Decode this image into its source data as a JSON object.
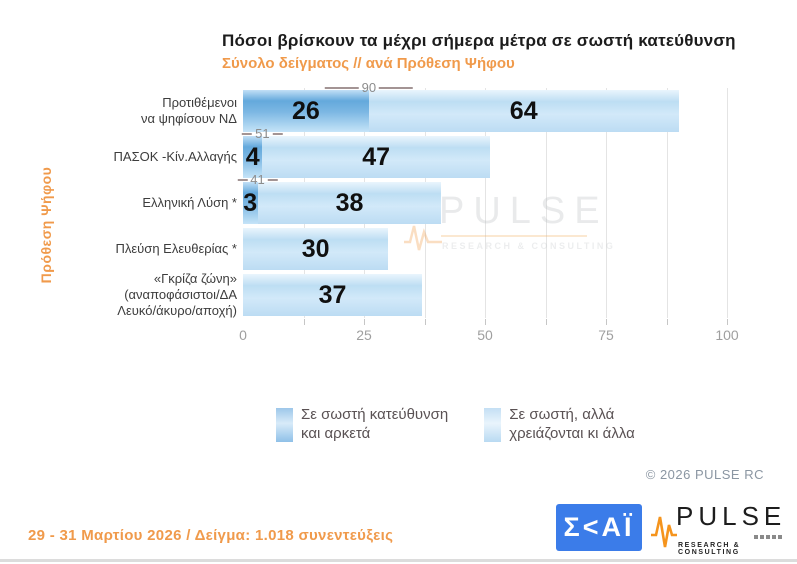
{
  "header": {
    "title": "Πόσοι βρίσκουν τα μέχρι σήμερα μέτρα σε σωστή κατεύθυνση",
    "subtitle": "Σύνολο δείγματος // ανά Πρόθεση Ψήφου"
  },
  "chart_data": {
    "type": "bar",
    "orientation": "horizontal",
    "stacked": true,
    "y_axis_title": "Πρόθεση Ψήφου",
    "categories": [
      [
        "Προτιθέμενοι",
        "να ψηφίσουν ΝΔ"
      ],
      [
        "ΠΑΣΟΚ -Κίν.Αλλαγής"
      ],
      [
        "Ελληνική Λύση *"
      ],
      [
        "Πλεύση Ελευθερίας *"
      ],
      [
        "«Γκρίζα ζώνη»",
        "(αναποφάσιστοι/ΔΑ",
        "Λευκό/άκυρο/αποχή)"
      ]
    ],
    "series": [
      {
        "name": "Σε σωστή κατεύθυνση και αρκετά",
        "color_key": "dark",
        "values": [
          26,
          4,
          3,
          0,
          0
        ]
      },
      {
        "name": "Σε σωστή, αλλά χρειάζονται κι άλλα",
        "color_key": "light",
        "values": [
          64,
          47,
          38,
          30,
          37
        ]
      }
    ],
    "totals": [
      90,
      51,
      41,
      null,
      null
    ],
    "xlim": [
      0,
      100
    ],
    "x_ticks": [
      0,
      25,
      50,
      75,
      100
    ],
    "minor_grid_step": 12.5,
    "grid": true,
    "legend_position": "bottom"
  },
  "legend": {
    "items": [
      {
        "lines": [
          "Σε σωστή κατεύθυνση",
          "και αρκετά"
        ],
        "color_key": "dark"
      },
      {
        "lines": [
          "Σε σωστή, αλλά",
          "χρειάζονται κι άλλα"
        ],
        "color_key": "light"
      }
    ]
  },
  "watermark": {
    "name": "PULSE",
    "tagline": "RESEARCH & CONSULTING"
  },
  "copyright": "© 2026 PULSE RC",
  "footer": {
    "note": "29 - 31 Μαρτίου 2026 / Δείγμα: 1.018 συνεντεύξεις"
  },
  "logos": {
    "skai_text": "Σ<ΑΪ",
    "pulse_name": "PULSE",
    "pulse_tagline": "RESEARCH & CONSULTING"
  },
  "colors": {
    "accent_orange": "#F09A4B",
    "series_dark": "#6FAFDF",
    "series_light": "#C3E0F4",
    "skai_blue": "#3B7CE9",
    "pulse_orange": "#F5941D"
  }
}
